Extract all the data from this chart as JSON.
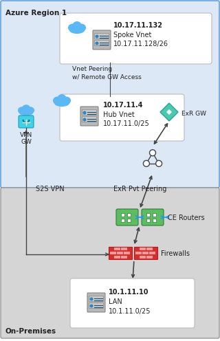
{
  "title_azure": "Azure Region 1",
  "title_onprem": "On-Premises",
  "azure_bg": "#dce8f5",
  "onprem_bg": "#d5d5d5",
  "white": "#ffffff",
  "black": "#000000",
  "spoke_vnet_ip": "10.17.11.132",
  "spoke_vnet_label": "Spoke Vnet",
  "spoke_vnet_subnet": "10.17.11.128/26",
  "hub_vnet_ip": "10.17.11.4",
  "hub_vnet_label": "Hub Vnet",
  "hub_vnet_subnet": "10.17.11.0/25",
  "peering_label": "Vnet Peering\nw/ Remote GW Access",
  "vpngw_label": "VPN\nGW",
  "exr_gw_label": "ExR GW",
  "s2s_vpn_label": "S2S VPN",
  "exr_pvt_label": "ExR Pvt Peering",
  "ce_routers_label": "CE Routers",
  "firewalls_label": "Firewalls",
  "lan_ip": "10.1.11.10",
  "lan_label": "LAN",
  "lan_subnet": "10.1.11.0/25",
  "cloud_blue": "#4da6e0",
  "cloud_light": "#5bb8f5",
  "server_gray": "#b0b0b0",
  "server_blue_dark": "#1a5276",
  "server_blue_light": "#2e86c1",
  "exr_teal": "#48c9b0",
  "router_green": "#5dbb62",
  "router_blue": "#2196f3",
  "firewall_red": "#d32f2f",
  "firewall_pink": "#ef9a9a",
  "vpn_cyan": "#40d0e8",
  "vpn_cyan2": "#7ee8f5",
  "text_dark": "#222222",
  "arrow_color": "#444444",
  "border_blue": "#4a90d9",
  "border_gray": "#999999"
}
